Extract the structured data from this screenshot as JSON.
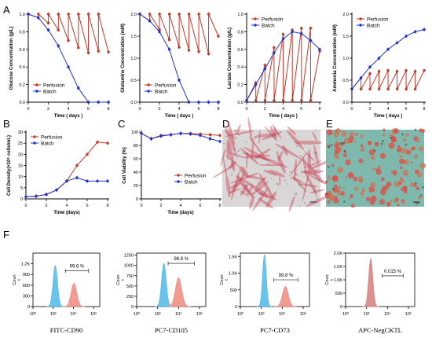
{
  "panel_letters": [
    "A",
    "B",
    "C",
    "D",
    "E",
    "F"
  ],
  "colors": {
    "perfusion": "#c0392b",
    "batch": "#2233cc",
    "hist_blue": "#4fb8e8",
    "hist_red": "#ee8a80"
  },
  "chart_data": [
    {
      "id": "A1",
      "type": "line",
      "xlabel": "Time ( days )",
      "ylabel": "Glucose Concentration (g/L)",
      "xlim": [
        0,
        8
      ],
      "ylim": [
        0,
        1.0
      ],
      "xticks": [
        0,
        2,
        4,
        6,
        8
      ],
      "yticks": [
        0.0,
        0.2,
        0.4,
        0.6,
        0.8,
        1.0
      ],
      "ytick_labels": [
        "0.0",
        "0.2",
        "0.4",
        "0.6",
        "0.8",
        "1.0"
      ],
      "legend": "bottom-left",
      "series": [
        {
          "name": "Perfusion",
          "x": [
            0,
            0.01,
            1,
            1.01,
            2,
            2.01,
            3,
            3.01,
            4,
            4.01,
            5,
            5.01,
            6,
            6.01,
            7,
            7.01,
            8
          ],
          "y": [
            1.0,
            1.0,
            0.96,
            1.0,
            0.9,
            1.0,
            0.82,
            1.0,
            0.7,
            1.0,
            0.62,
            1.0,
            0.56,
            1.0,
            0.58,
            1.0,
            0.57
          ]
        },
        {
          "name": "Batch",
          "x": [
            0,
            1,
            2,
            3,
            4,
            5,
            6,
            7,
            8
          ],
          "y": [
            1.0,
            0.96,
            0.82,
            0.64,
            0.4,
            0.16,
            0.0,
            0.0,
            0.0
          ]
        }
      ]
    },
    {
      "id": "A2",
      "type": "line",
      "xlabel": "Time ( days )",
      "ylabel": "Glutamine Concentration (mM)",
      "xlim": [
        0,
        8
      ],
      "ylim": [
        0,
        2.0
      ],
      "xticks": [
        0,
        2,
        4,
        6,
        8
      ],
      "yticks": [
        0.0,
        0.5,
        1.0,
        1.5,
        2.0
      ],
      "ytick_labels": [
        "0.0",
        "0.5",
        "1.0",
        "1.5",
        "2.0"
      ],
      "legend": "bottom-left",
      "series": [
        {
          "name": "Perfusion",
          "x": [
            0,
            0.01,
            1,
            1.01,
            2,
            2.01,
            3,
            3.01,
            4,
            4.01,
            5,
            5.01,
            6,
            6.01,
            7,
            7.01,
            8
          ],
          "y": [
            2.0,
            2.0,
            1.85,
            2.0,
            1.65,
            2.0,
            1.42,
            2.0,
            1.25,
            2.0,
            1.18,
            2.0,
            1.15,
            2.0,
            1.1,
            2.0,
            1.5
          ]
        },
        {
          "name": "Batch",
          "x": [
            0,
            1,
            2,
            3,
            4,
            5,
            6,
            7,
            8
          ],
          "y": [
            2.0,
            1.85,
            1.6,
            1.2,
            0.5,
            0.0,
            0.0,
            0.0,
            0.0
          ]
        }
      ]
    },
    {
      "id": "A3",
      "type": "line",
      "xlabel": "Time ( days )",
      "ylabel": "Lactate Concentration (g/L)",
      "xlim": [
        0,
        8
      ],
      "ylim": [
        0,
        1.0
      ],
      "xticks": [
        0,
        2,
        4,
        6,
        8
      ],
      "yticks": [
        0.0,
        0.2,
        0.4,
        0.6,
        0.8,
        1.0
      ],
      "ytick_labels": [
        "0.0",
        "0.2",
        "0.4",
        "0.6",
        "0.8",
        "1.0"
      ],
      "legend": "top-left",
      "series": [
        {
          "name": "Perfusion",
          "x": [
            0,
            0.01,
            1,
            1.01,
            2,
            2.01,
            3,
            3.01,
            4,
            4.01,
            5,
            5.01,
            6,
            6.01,
            7,
            7.01,
            8
          ],
          "y": [
            0.02,
            0.02,
            0.22,
            0.02,
            0.42,
            0.02,
            0.62,
            0.02,
            0.77,
            0.02,
            0.82,
            0.02,
            0.84,
            0.02,
            0.84,
            0.02,
            0.58
          ]
        },
        {
          "name": "Batch",
          "x": [
            0,
            1,
            2,
            3,
            4,
            5,
            6,
            7,
            8
          ],
          "y": [
            0.02,
            0.2,
            0.38,
            0.56,
            0.72,
            0.8,
            0.78,
            0.7,
            0.6
          ]
        }
      ]
    },
    {
      "id": "A4",
      "type": "line",
      "xlabel": "Time ( days )",
      "ylabel": "Ammonia Concentration (mM)",
      "xlim": [
        0,
        8
      ],
      "ylim": [
        0,
        2.0
      ],
      "xticks": [
        0,
        2,
        4,
        6,
        8
      ],
      "yticks": [
        0.0,
        0.5,
        1.0,
        1.5,
        2.0
      ],
      "ytick_labels": [
        "0.0",
        "0.5",
        "1.0",
        "1.5",
        "2.0"
      ],
      "legend": "top-left",
      "series": [
        {
          "name": "Perfusion",
          "x": [
            0,
            0.01,
            1,
            1.01,
            2,
            2.01,
            3,
            3.01,
            4,
            4.01,
            5,
            5.01,
            6,
            6.01,
            7,
            7.01,
            8
          ],
          "y": [
            0.3,
            0.3,
            0.55,
            0.3,
            0.65,
            0.3,
            0.7,
            0.3,
            0.72,
            0.3,
            0.7,
            0.3,
            0.72,
            0.3,
            0.7,
            0.3,
            0.72
          ]
        },
        {
          "name": "Batch",
          "x": [
            0,
            1,
            2,
            3,
            4,
            5,
            6,
            7,
            8
          ],
          "y": [
            0.3,
            0.55,
            0.8,
            1.0,
            1.2,
            1.35,
            1.5,
            1.6,
            1.65
          ]
        }
      ]
    },
    {
      "id": "B",
      "type": "line",
      "xlabel": "Time (days)",
      "ylabel": "Cell Density(×10⁵ cells/mL)",
      "xlim": [
        0,
        8
      ],
      "ylim": [
        0,
        30
      ],
      "xticks": [
        0,
        2,
        4,
        6,
        8
      ],
      "yticks": [
        0,
        5,
        10,
        15,
        20,
        25,
        30
      ],
      "ytick_labels": [
        "0",
        "5",
        "10",
        "15",
        "20",
        "25",
        "30"
      ],
      "legend": "top-left",
      "series": [
        {
          "name": "Perfusion",
          "x": [
            0,
            1,
            2,
            3,
            4,
            5,
            6,
            7,
            8
          ],
          "y": [
            1,
            1.2,
            2,
            4,
            8,
            15,
            20,
            25.5,
            25
          ]
        },
        {
          "name": "Batch",
          "x": [
            0,
            1,
            2,
            3,
            4,
            5,
            6,
            7,
            8
          ],
          "y": [
            1,
            1.2,
            2,
            4,
            8,
            9.5,
            8,
            8,
            8
          ]
        }
      ]
    },
    {
      "id": "C",
      "type": "line",
      "xlabel": "Time (days)",
      "ylabel": "Cell Viability (%)",
      "xlim": [
        0,
        8
      ],
      "ylim": [
        0,
        100
      ],
      "xticks": [
        0,
        2,
        4,
        6,
        8
      ],
      "yticks": [
        0,
        20,
        40,
        60,
        80,
        100
      ],
      "ytick_labels": [
        "0",
        "20",
        "40",
        "60",
        "80",
        "100"
      ],
      "legend": "bottom-right",
      "series": [
        {
          "name": "Perfusion",
          "x": [
            0,
            1,
            2,
            3,
            4,
            5,
            6,
            7,
            8
          ],
          "y": [
            98,
            90,
            95,
            96,
            98,
            98,
            97,
            96,
            95
          ]
        },
        {
          "name": "Batch",
          "x": [
            0,
            1,
            2,
            3,
            4,
            5,
            6,
            7,
            8
          ],
          "y": [
            98,
            90,
            94,
            96,
            98,
            97,
            95,
            90,
            86
          ]
        }
      ]
    },
    {
      "id": "F1",
      "type": "area",
      "xlabel": "FITC-CD90",
      "ylabel": "Coun\nt",
      "xscale": "log",
      "xlim_log": [
        0,
        6.6
      ],
      "ylim": [
        0,
        1500
      ],
      "yticks": [
        0,
        300,
        600,
        900,
        1200
      ],
      "ytick_labels": [
        "0",
        "300",
        "600",
        "900",
        "1.2K"
      ],
      "xtick_exp": [
        0,
        2,
        4,
        6
      ],
      "xtick_labels": [
        "10⁰",
        "10²",
        "10⁴",
        "10⁶"
      ],
      "percent_label": "99.6 %",
      "gate_log": [
        3.2,
        5.5
      ],
      "gate_y": 1000,
      "peaks": [
        {
          "color": "blue",
          "center_log": 2.2,
          "width": 0.22,
          "height": 1150
        },
        {
          "color": "red",
          "center_log": 4.05,
          "width": 0.28,
          "height": 650
        }
      ]
    },
    {
      "id": "F2",
      "type": "area",
      "xlabel": "PC7-CD105",
      "ylabel": "Coun\nt",
      "xscale": "log",
      "xlim_log": [
        0,
        6.6
      ],
      "ylim": [
        0,
        1300
      ],
      "yticks": [
        0,
        250,
        500,
        750,
        1000,
        1250
      ],
      "ytick_labels": [
        "0",
        "250",
        "500",
        "750",
        "1000",
        "1250"
      ],
      "xtick_exp": [
        0,
        2,
        4,
        6
      ],
      "xtick_labels": [
        "10⁰",
        "10²",
        "10⁴",
        "10⁶"
      ],
      "percent_label": "98.8 %",
      "gate_log": [
        3.0,
        5.5
      ],
      "gate_y": 1050,
      "peaks": [
        {
          "color": "blue",
          "center_log": 2.6,
          "width": 0.22,
          "height": 1050
        },
        {
          "color": "red",
          "center_log": 4.0,
          "width": 0.3,
          "height": 700
        }
      ]
    },
    {
      "id": "F3",
      "type": "area",
      "xlabel": "PC7-CD73",
      "ylabel": "Coun\nt",
      "xscale": "log",
      "xlim_log": [
        0,
        6.6
      ],
      "ylim": [
        0,
        1600
      ],
      "yticks": [
        0,
        500,
        1000,
        1500
      ],
      "ytick_labels": [
        "0",
        "500",
        "1.0K",
        "1.5K"
      ],
      "xtick_exp": [
        0,
        2,
        4,
        6
      ],
      "xtick_labels": [
        "10⁰",
        "10²",
        "10⁴",
        "10⁶"
      ],
      "percent_label": "99.8 %",
      "gate_log": [
        3.2,
        5.5
      ],
      "gate_y": 800,
      "peaks": [
        {
          "color": "blue",
          "center_log": 2.3,
          "width": 0.18,
          "height": 1550
        },
        {
          "color": "red",
          "center_log": 4.3,
          "width": 0.28,
          "height": 600
        }
      ]
    },
    {
      "id": "F4",
      "type": "area",
      "xlabel": "APC-NegCKTL",
      "ylabel": "Coun\nt",
      "xscale": "log",
      "xlim_log": [
        0,
        6.6
      ],
      "ylim": [
        0,
        2000
      ],
      "yticks": [
        0,
        500,
        1000,
        1500,
        2000
      ],
      "ytick_labels": [
        "0",
        "500",
        "1.0K",
        "1.5K",
        "2.0K"
      ],
      "xtick_exp": [
        0,
        2,
        4,
        6
      ],
      "xtick_labels": [
        "10⁰",
        "10²",
        "10⁴",
        "10⁶"
      ],
      "percent_label": "0.015 %",
      "gate_log": [
        3.5,
        5.5
      ],
      "gate_y": 1150,
      "peaks": [
        {
          "color": "blue",
          "center_log": 2.4,
          "width": 0.2,
          "height": 1800
        },
        {
          "color": "red",
          "center_log": 2.4,
          "width": 0.2,
          "height": 1760
        }
      ]
    }
  ]
}
